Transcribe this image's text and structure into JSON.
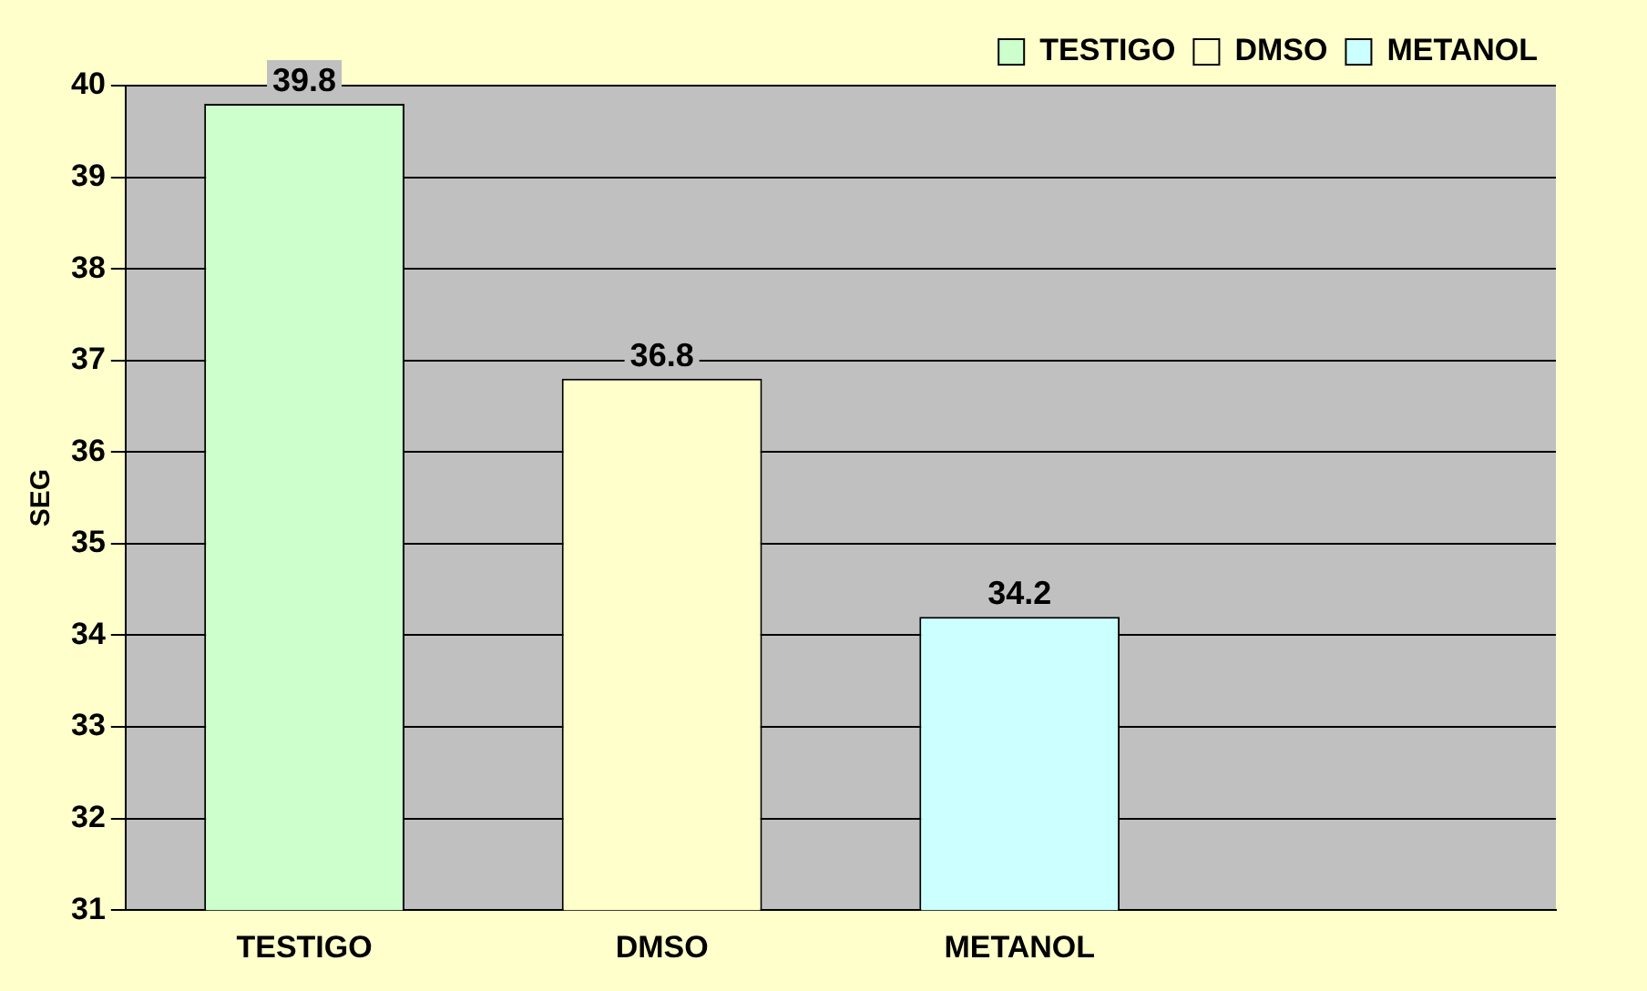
{
  "chart_data": {
    "type": "bar",
    "ylabel": "SEG",
    "categories": [
      "TESTIGO",
      "DMSO",
      "METANOL",
      null
    ],
    "series": [
      {
        "name": "TESTIGO",
        "color": "#ccffcc",
        "values": [
          39.8,
          null,
          null,
          null
        ]
      },
      {
        "name": "DMSO",
        "color": "#ffffcc",
        "values": [
          null,
          36.8,
          null,
          null
        ]
      },
      {
        "name": "METANOL",
        "color": "#ccffff",
        "values": [
          null,
          null,
          34.2,
          null
        ]
      }
    ],
    "ylim": [
      31,
      40
    ],
    "yticks": [
      31,
      32,
      33,
      34,
      35,
      36,
      37,
      38,
      39,
      40
    ],
    "grid": "y",
    "legend": "top right",
    "data_labels": true
  }
}
